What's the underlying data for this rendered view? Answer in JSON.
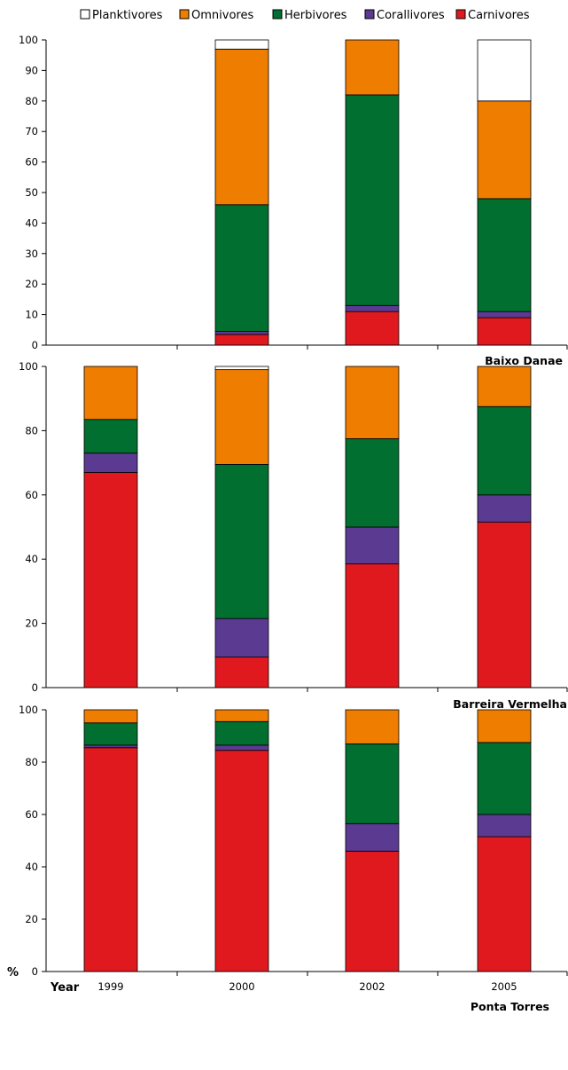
{
  "legend": {
    "order": [
      "Planktivores",
      "Omnivores",
      "Herbivores",
      "Corallivores",
      "Carnivores"
    ]
  },
  "colors": {
    "Planktivores": "#ffffff",
    "Omnivores": "#ef7d00",
    "Herbivores": "#006f2f",
    "Corallivores": "#5b3a92",
    "Carnivores": "#e0191e"
  },
  "axes": {
    "y_title": "%",
    "x_title": "Year"
  },
  "chart_data": [
    {
      "type": "bar",
      "stacked": true,
      "title": "Baixo Danae",
      "categories": [
        "1999",
        "2000",
        "2002",
        "2005"
      ],
      "ylim": [
        0,
        100
      ],
      "yticks": [
        0,
        10,
        20,
        30,
        40,
        50,
        60,
        70,
        80,
        90,
        100
      ],
      "show_xtick_labels": false,
      "series": [
        {
          "name": "Carnivores",
          "values": [
            0,
            3.5,
            11,
            9
          ]
        },
        {
          "name": "Corallivores",
          "values": [
            0,
            1,
            2,
            2
          ]
        },
        {
          "name": "Herbivores",
          "values": [
            0,
            41.5,
            69,
            37
          ]
        },
        {
          "name": "Omnivores",
          "values": [
            0,
            51,
            18,
            32
          ]
        },
        {
          "name": "Planktivores",
          "values": [
            0,
            3,
            0,
            20
          ]
        }
      ]
    },
    {
      "type": "bar",
      "stacked": true,
      "title": "Barreira Vermelha",
      "categories": [
        "1999",
        "2000",
        "2002",
        "2005"
      ],
      "ylim": [
        0,
        100
      ],
      "yticks": [
        0,
        20,
        40,
        60,
        80,
        100
      ],
      "show_xtick_labels": false,
      "series": [
        {
          "name": "Carnivores",
          "values": [
            67,
            9.5,
            38.5,
            51.5
          ]
        },
        {
          "name": "Corallivores",
          "values": [
            6,
            12,
            11.5,
            8.5
          ]
        },
        {
          "name": "Herbivores",
          "values": [
            10.5,
            48,
            27.5,
            27.5
          ]
        },
        {
          "name": "Omnivores",
          "values": [
            16.5,
            29.5,
            22.5,
            12.5
          ]
        },
        {
          "name": "Planktivores",
          "values": [
            0,
            1,
            0,
            0
          ]
        }
      ]
    },
    {
      "type": "bar",
      "stacked": true,
      "title": "Ponta Torres",
      "categories": [
        "1999",
        "2000",
        "2002",
        "2005"
      ],
      "ylim": [
        0,
        100
      ],
      "yticks": [
        0,
        20,
        40,
        60,
        80,
        100
      ],
      "show_xtick_labels": true,
      "series": [
        {
          "name": "Carnivores",
          "values": [
            85.5,
            84.5,
            46,
            51.5
          ]
        },
        {
          "name": "Corallivores",
          "values": [
            1,
            2,
            10.5,
            8.5
          ]
        },
        {
          "name": "Herbivores",
          "values": [
            8.5,
            9,
            30.5,
            27.5
          ]
        },
        {
          "name": "Omnivores",
          "values": [
            5,
            4.5,
            13,
            12.5
          ]
        },
        {
          "name": "Planktivores",
          "values": [
            0,
            0,
            0,
            0
          ]
        }
      ]
    }
  ]
}
